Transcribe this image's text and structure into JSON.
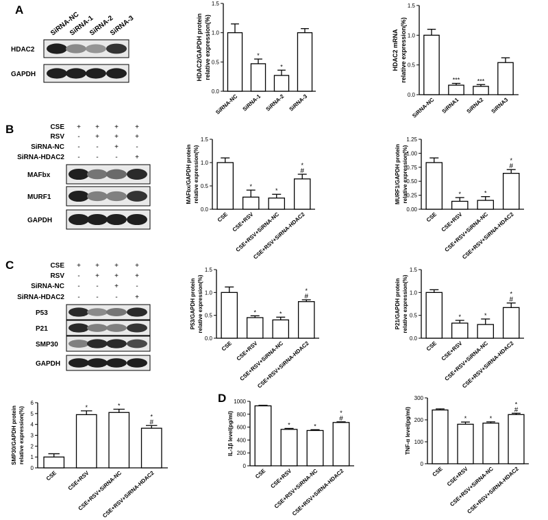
{
  "panels": {
    "A": {
      "letter": "A",
      "blot": {
        "lanes": [
          "SiRNA-NC",
          "SiRNA-1",
          "SiRNA-2",
          "SiRNA-3"
        ],
        "bands": [
          {
            "label": "HDAC2",
            "intensity": [
              0.95,
              0.45,
              0.4,
              0.85
            ]
          },
          {
            "label": "GAPDH",
            "intensity": [
              0.95,
              0.95,
              0.95,
              0.95
            ]
          }
        ]
      }
    },
    "B": {
      "letter": "B",
      "blot": {
        "rows": [
          {
            "label": "CSE",
            "signs": [
              "+",
              "+",
              "+",
              "+"
            ]
          },
          {
            "label": "RSV",
            "signs": [
              "-",
              "+",
              "+",
              "+"
            ]
          },
          {
            "label": "SiRNA-NC",
            "signs": [
              "-",
              "-",
              "+",
              "-"
            ]
          },
          {
            "label": "SiRNA-HDAC2",
            "signs": [
              "-",
              "-",
              "-",
              "+"
            ]
          }
        ],
        "bands": [
          {
            "label": "MAFbx",
            "intensity": [
              0.95,
              0.55,
              0.6,
              0.9
            ]
          },
          {
            "label": "MURF1",
            "intensity": [
              0.95,
              0.5,
              0.5,
              0.85
            ]
          },
          {
            "label": "GAPDH",
            "intensity": [
              0.95,
              0.95,
              0.95,
              0.95
            ]
          }
        ]
      }
    },
    "C": {
      "letter": "C",
      "blot": {
        "rows": [
          {
            "label": "CSE",
            "signs": [
              "+",
              "+",
              "+",
              "+"
            ]
          },
          {
            "label": "RSV",
            "signs": [
              "-",
              "+",
              "+",
              "+"
            ]
          },
          {
            "label": "SiRNA-NC",
            "signs": [
              "-",
              "-",
              "+",
              "-"
            ]
          },
          {
            "label": "SiRNA-HDAC2",
            "signs": [
              "-",
              "-",
              "-",
              "+"
            ]
          }
        ],
        "bands": [
          {
            "label": "P53",
            "intensity": [
              0.9,
              0.45,
              0.55,
              0.9
            ]
          },
          {
            "label": "P21",
            "intensity": [
              0.9,
              0.5,
              0.5,
              0.85
            ]
          },
          {
            "label": "SMP30",
            "intensity": [
              0.5,
              0.9,
              0.9,
              0.75
            ]
          },
          {
            "label": "GAPDH",
            "intensity": [
              0.95,
              0.95,
              0.95,
              0.95
            ]
          }
        ]
      }
    },
    "D": {
      "letter": "D"
    }
  },
  "chart_data": [
    {
      "id": "A1",
      "type": "bar",
      "ylabel": "HDAC2/GAPDH protein relative expression(%)",
      "categories": [
        "SiRNA-NC",
        "SiRNA-1",
        "SiRNA-2",
        "SiRNA-3"
      ],
      "values": [
        1.0,
        0.47,
        0.27,
        1.0
      ],
      "errors": [
        0.15,
        0.08,
        0.09,
        0.07
      ],
      "marks": [
        "",
        "*",
        "*",
        ""
      ],
      "ylim": [
        0,
        1.5
      ],
      "yticks": [
        "0.0",
        "0.5",
        "1.0",
        "1.5"
      ]
    },
    {
      "id": "A2",
      "type": "bar",
      "ylabel": "HDAC2 mRNA relative expression(%)",
      "categories": [
        "SiRNA-NC",
        "SiRNA1",
        "SiRNA2",
        "SiRNA3"
      ],
      "values": [
        1.0,
        0.16,
        0.14,
        0.54
      ],
      "errors": [
        0.1,
        0.03,
        0.03,
        0.08
      ],
      "marks": [
        "",
        "***",
        "***",
        ""
      ],
      "ylim": [
        0,
        1.5
      ],
      "yticks": [
        "0.0",
        "0.5",
        "1.0",
        "1.5"
      ]
    },
    {
      "id": "B1",
      "type": "bar",
      "ylabel": "MAFbx/GAPDH protein relative expression(%)",
      "categories": [
        "CSE",
        "CSE+RSV",
        "CSE+RSV+SiRNA-NC",
        "CSE+RSV+SiRNA-HDAC2"
      ],
      "values": [
        1.0,
        0.26,
        0.24,
        0.65
      ],
      "errors": [
        0.1,
        0.15,
        0.08,
        0.1
      ],
      "marks": [
        "",
        "*",
        "*",
        "*#"
      ],
      "ylim": [
        0,
        1.5
      ],
      "yticks": [
        "0.0",
        "0.5",
        "1.0",
        "1.5"
      ]
    },
    {
      "id": "B2",
      "type": "bar",
      "ylabel": "MURF1/GAPDH protein relative expression(%)",
      "categories": [
        "CSE",
        "CSE+RSV",
        "CSE+RSV+SiRNA-NC",
        "CSE+RSV+SiRNA-HDAC2"
      ],
      "values": [
        1.0,
        0.17,
        0.19,
        0.77
      ],
      "errors": [
        0.1,
        0.08,
        0.08,
        0.08
      ],
      "marks": [
        "",
        "*",
        "*",
        "*#"
      ],
      "ylim": [
        0,
        1.5
      ],
      "yticks": [
        "0.00",
        "0.25",
        "0.50",
        "0.75",
        "1.00",
        "1.25"
      ]
    },
    {
      "id": "C1",
      "type": "bar",
      "ylabel": "P53/GAPDH protein relative expression(%)",
      "categories": [
        "CSE",
        "CSE+RSV",
        "CSE+RSV+SiRNA-NC",
        "CSE+RSV+SiRNA-HDAC2"
      ],
      "values": [
        1.0,
        0.45,
        0.4,
        0.8
      ],
      "errors": [
        0.12,
        0.04,
        0.06,
        0.04
      ],
      "marks": [
        "",
        "*",
        "*",
        "*#"
      ],
      "ylim": [
        0,
        1.5
      ],
      "yticks": [
        "0.0",
        "0.5",
        "1.0",
        "1.5"
      ]
    },
    {
      "id": "C2",
      "type": "bar",
      "ylabel": "P21/GAPDH protein relative expression(%)",
      "categories": [
        "CSE",
        "CSE+RSV",
        "CSE+RSV+SiRNA-NC",
        "CSE+RSV+SiRNA-HDAC2"
      ],
      "values": [
        1.0,
        0.33,
        0.3,
        0.67
      ],
      "errors": [
        0.06,
        0.06,
        0.12,
        0.1
      ],
      "marks": [
        "",
        "*",
        "*",
        "*#"
      ],
      "ylim": [
        0,
        1.5
      ],
      "yticks": [
        "0.0",
        "0.5",
        "1.0",
        "1.5"
      ]
    },
    {
      "id": "C3",
      "type": "bar",
      "ylabel": "SMP30/GAPDH protein relative expression(%)",
      "categories": [
        "CSE",
        "CSE+RSV",
        "CSE+RSV+SiRNA-NC",
        "CSE+RSV+SiRNA-HDAC2"
      ],
      "values": [
        1.0,
        4.9,
        5.1,
        3.65
      ],
      "errors": [
        0.3,
        0.35,
        0.3,
        0.25
      ],
      "marks": [
        "",
        "*",
        "*",
        "*#"
      ],
      "ylim": [
        0,
        6
      ],
      "yticks": [
        "0",
        "1",
        "2",
        "3",
        "4",
        "5",
        "6"
      ]
    },
    {
      "id": "D1",
      "type": "bar",
      "ylabel": "IL-1β level(pg/ml)",
      "categories": [
        "CSE",
        "CSE+RSV",
        "CSE+RSV+SiRNA-NC",
        "CSE+RSV+SiRNA-HDAC2"
      ],
      "values": [
        930,
        565,
        548,
        672
      ],
      "errors": [
        8,
        15,
        12,
        10
      ],
      "marks": [
        "",
        "*",
        "*",
        "*#"
      ],
      "ylim": [
        0,
        1000
      ],
      "yticks": [
        "0",
        "200",
        "400",
        "600",
        "800",
        "1000"
      ]
    },
    {
      "id": "D2",
      "type": "bar",
      "ylabel": "TNF-α level(pg/ml)",
      "categories": [
        "CSE",
        "CSE+RSV",
        "CSE+RSV+SiRNA-NC",
        "CSE+RSV+SiRNA-HDAC2"
      ],
      "values": [
        245,
        180,
        185,
        224
      ],
      "errors": [
        5,
        10,
        6,
        6
      ],
      "marks": [
        "",
        "*",
        "*",
        "*#"
      ],
      "ylim": [
        0,
        300
      ],
      "yticks": [
        "0",
        "100",
        "200",
        "300"
      ]
    }
  ]
}
